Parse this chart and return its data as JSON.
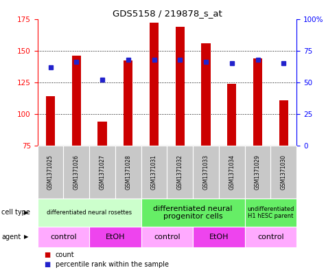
{
  "title": "GDS5158 / 219878_s_at",
  "samples": [
    "GSM1371025",
    "GSM1371026",
    "GSM1371027",
    "GSM1371028",
    "GSM1371031",
    "GSM1371032",
    "GSM1371033",
    "GSM1371034",
    "GSM1371029",
    "GSM1371030"
  ],
  "counts": [
    114,
    146,
    94,
    142,
    172,
    169,
    156,
    124,
    144,
    111
  ],
  "percentiles": [
    62,
    66,
    52,
    68,
    68,
    68,
    66,
    65,
    68,
    65
  ],
  "y_min": 75,
  "y_max": 175,
  "y_ticks_left": [
    75,
    100,
    125,
    150,
    175
  ],
  "y_ticks_right": [
    0,
    25,
    50,
    75,
    100
  ],
  "bar_color": "#cc0000",
  "dot_color": "#2222cc",
  "bar_bottom": 75,
  "cell_type_groups": [
    {
      "label": "differentiated neural rosettes",
      "start": 0,
      "end": 4,
      "color": "#ccffcc",
      "fontsize": 6
    },
    {
      "label": "differentiated neural\nprogenitor cells",
      "start": 4,
      "end": 8,
      "color": "#66ee66",
      "fontsize": 8
    },
    {
      "label": "undifferentiated\nH1 hESC parent",
      "start": 8,
      "end": 10,
      "color": "#66ee66",
      "fontsize": 6
    }
  ],
  "agent_groups": [
    {
      "label": "control",
      "start": 0,
      "end": 2,
      "color": "#ffaaff"
    },
    {
      "label": "EtOH",
      "start": 2,
      "end": 4,
      "color": "#ee44ee"
    },
    {
      "label": "control",
      "start": 4,
      "end": 6,
      "color": "#ffaaff"
    },
    {
      "label": "EtOH",
      "start": 6,
      "end": 8,
      "color": "#ee44ee"
    },
    {
      "label": "control",
      "start": 8,
      "end": 10,
      "color": "#ffaaff"
    }
  ],
  "sample_bg_color": "#c8c8c8",
  "bg_color": "#ffffff",
  "bar_width": 0.35
}
